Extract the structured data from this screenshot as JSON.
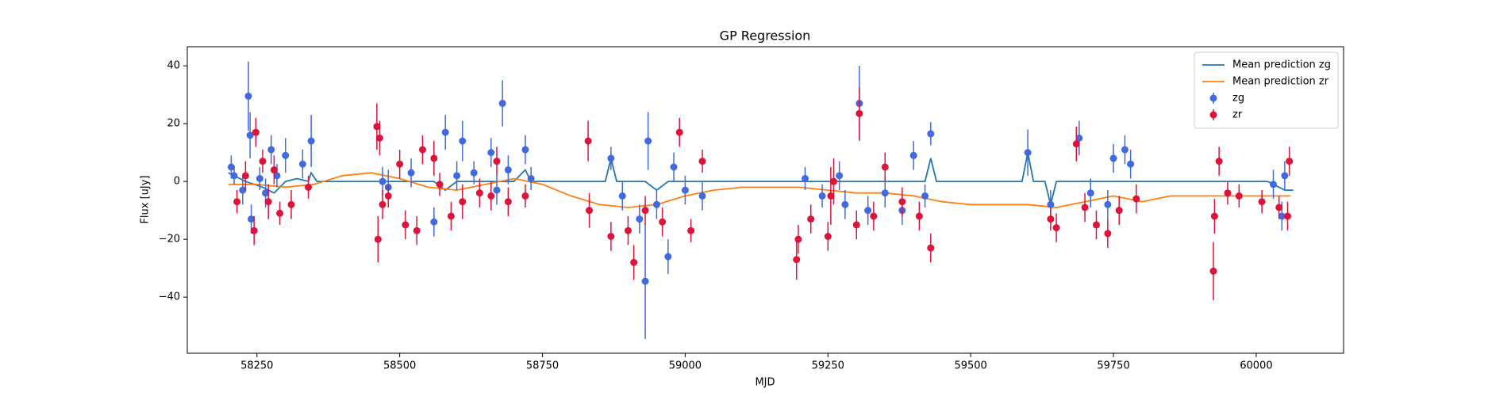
{
  "chart_data": {
    "type": "scatter",
    "title": "GP Regression",
    "x_label": "MJD",
    "y_label": "Flux [uJy]",
    "xlim": [
      58128,
      60153
    ],
    "ylim": [
      -59.4,
      46.6
    ],
    "xticks": [
      58250,
      58500,
      58750,
      59000,
      59250,
      59500,
      59750,
      60000
    ],
    "yticks": [
      {
        "value": -40,
        "label": "−40"
      },
      {
        "value": -20,
        "label": "−20"
      },
      0,
      20,
      40
    ],
    "legend": "upper right",
    "series": [
      {
        "name": "Mean prediction zg",
        "color": "#1f77b4",
        "kind": "line",
        "x": [
          58200,
          58230,
          58260,
          58280,
          58300,
          58320,
          58340,
          58345,
          58355,
          58400,
          58450,
          58560,
          58580,
          58600,
          58700,
          58720,
          58730,
          58800,
          58860,
          58870,
          58880,
          58930,
          58950,
          58970,
          59000,
          59050,
          59200,
          59300,
          59420,
          59430,
          59440,
          59500,
          59590,
          59600,
          59610,
          59630,
          59640,
          59650,
          59680,
          59780,
          59800,
          60020,
          60050,
          60065
        ],
        "values": [
          3,
          0,
          -2,
          -4,
          0,
          1,
          0,
          3,
          0,
          0,
          0,
          0,
          -3,
          0,
          0,
          4,
          0,
          0,
          0,
          8,
          0,
          0,
          -3,
          0,
          0,
          0,
          0,
          0,
          0,
          8,
          0,
          0,
          0,
          10,
          0,
          0,
          -8,
          0,
          0,
          0,
          0,
          0,
          -3,
          -3
        ]
      },
      {
        "name": "Mean prediction zr",
        "color": "#ff7f0e",
        "kind": "line",
        "x": [
          58200,
          58250,
          58300,
          58350,
          58400,
          58450,
          58500,
          58550,
          58600,
          58650,
          58700,
          58750,
          58800,
          58850,
          58900,
          58950,
          59000,
          59050,
          59100,
          59150,
          59200,
          59250,
          59300,
          59350,
          59400,
          59450,
          59500,
          59550,
          59600,
          59650,
          59700,
          59750,
          59800,
          59850,
          59900,
          59950,
          60000,
          60060
        ],
        "values": [
          -1,
          -1,
          -2,
          -1,
          2,
          3,
          1,
          -2,
          -3,
          -1,
          1,
          -1,
          -5,
          -8,
          -9,
          -8,
          -5,
          -3,
          -2,
          -2,
          -2,
          -3,
          -4,
          -4,
          -5,
          -7,
          -8,
          -8,
          -8,
          -9,
          -7,
          -5,
          -7,
          -5,
          -5,
          -5,
          -5,
          -5
        ]
      },
      {
        "name": "zg",
        "color": "#4169e1",
        "kind": "errorbar",
        "x": [
          58205,
          58210,
          58225,
          58235,
          58238,
          58240,
          58255,
          58265,
          58275,
          58285,
          58300,
          58330,
          58345,
          58470,
          58480,
          58520,
          58560,
          58580,
          58600,
          58610,
          58630,
          58660,
          58670,
          58680,
          58690,
          58720,
          58730,
          58870,
          58890,
          58920,
          58930,
          58935,
          58950,
          58970,
          58980,
          59000,
          59030,
          59210,
          59240,
          59270,
          59280,
          59305,
          59320,
          59350,
          59380,
          59400,
          59420,
          59430,
          59600,
          59640,
          59690,
          59710,
          59740,
          59750,
          59770,
          59780,
          60030,
          60045,
          60050
        ],
        "values": [
          5,
          2,
          -3,
          29.5,
          16,
          -13,
          1,
          -4,
          11,
          2,
          9,
          6,
          14,
          0,
          -2,
          3,
          -14,
          17,
          2,
          14,
          3,
          10,
          -3,
          27,
          4,
          11,
          1,
          8,
          -5,
          -13,
          -34.5,
          14,
          -8,
          -26,
          5,
          -3,
          -5,
          1,
          -5,
          2,
          -8,
          27,
          -10,
          -4,
          -10,
          9,
          -5,
          16.5,
          10,
          -8,
          15,
          -4,
          -8,
          8,
          11,
          6,
          -1,
          -12,
          2
        ],
        "errors": [
          4,
          3,
          5,
          12,
          8,
          5,
          4,
          5,
          5,
          4,
          6,
          5,
          9,
          5,
          6,
          5,
          5,
          6,
          5,
          7,
          4,
          5,
          5,
          8,
          5,
          5,
          4,
          4,
          5,
          5,
          20,
          10,
          5,
          6,
          5,
          5,
          5,
          4,
          4,
          5,
          5,
          13,
          5,
          5,
          5,
          5,
          4,
          4,
          8,
          5,
          6,
          5,
          5,
          5,
          5,
          5,
          5,
          5,
          5
        ]
      },
      {
        "name": "zr",
        "color": "#dc143c",
        "kind": "errorbar",
        "x": [
          58215,
          58230,
          58245,
          58248,
          58260,
          58270,
          58280,
          58290,
          58310,
          58340,
          58460,
          58462,
          58465,
          58470,
          58480,
          58500,
          58510,
          58530,
          58540,
          58560,
          58570,
          58590,
          58610,
          58640,
          58660,
          58670,
          58690,
          58720,
          58830,
          58832,
          58870,
          58900,
          58910,
          58930,
          58960,
          58990,
          59010,
          59030,
          59195,
          59198,
          59220,
          59250,
          59255,
          59260,
          59300,
          59305,
          59330,
          59350,
          59380,
          59410,
          59430,
          59640,
          59650,
          59685,
          59700,
          59720,
          59740,
          59760,
          59790,
          59925,
          59927,
          59935,
          59950,
          59970,
          60010,
          60040,
          60055,
          60058
        ],
        "values": [
          -7,
          2,
          -17,
          17,
          7,
          -7,
          4,
          -11,
          -8,
          -2,
          19,
          -20,
          15,
          -8,
          -5,
          6,
          -15,
          -17,
          11,
          8,
          -1,
          -12,
          -7,
          -4,
          -5,
          7,
          -7,
          -5,
          14,
          -10,
          -19,
          -17,
          -28,
          -10,
          -14,
          17,
          -17,
          7,
          -27,
          -20,
          -13,
          -19,
          -5,
          0,
          -15,
          23.5,
          -12,
          5,
          -7,
          -12,
          -23,
          -13,
          -16,
          13,
          -9,
          -15,
          -18,
          -10,
          -6,
          -31,
          -12,
          7,
          -4,
          -5,
          -7,
          -9,
          -12,
          7
        ],
        "errors": [
          4,
          5,
          5,
          5,
          4,
          6,
          5,
          4,
          5,
          4,
          8,
          8,
          6,
          5,
          4,
          5,
          5,
          5,
          5,
          6,
          4,
          5,
          6,
          5,
          5,
          5,
          5,
          4,
          7,
          6,
          5,
          5,
          6,
          5,
          5,
          5,
          4,
          4,
          7,
          5,
          5,
          5,
          10,
          8,
          5,
          9,
          5,
          5,
          5,
          5,
          5,
          4,
          5,
          6,
          5,
          5,
          5,
          5,
          5,
          10,
          6,
          5,
          4,
          4,
          4,
          4,
          5,
          5
        ]
      }
    ]
  }
}
